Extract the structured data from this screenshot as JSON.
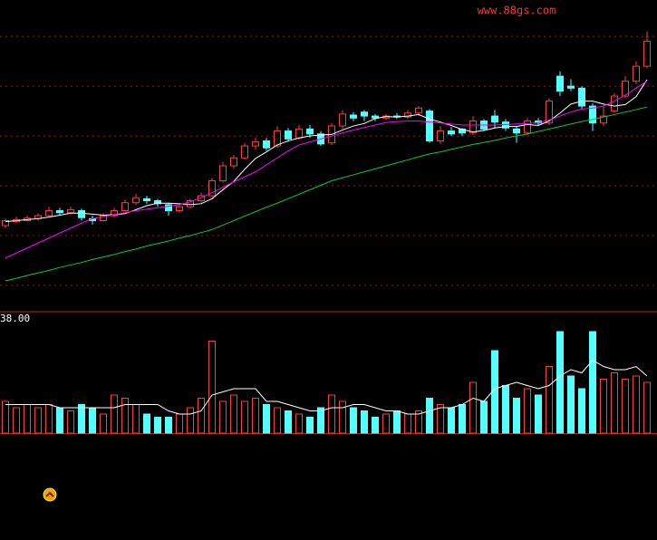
{
  "watermark": "www.88gs.com",
  "chart_data": [
    {
      "type": "candlestick",
      "up_color": "#ff3c3c",
      "down_color": "#54ffff",
      "grid": true,
      "ylim": [
        2.49,
        8.73
      ],
      "yticks": [
        3,
        4,
        5,
        6,
        7,
        8
      ],
      "open": [
        4.2,
        4.28,
        4.3,
        4.34,
        4.4,
        4.5,
        4.46,
        4.5,
        4.34,
        4.3,
        4.4,
        4.5,
        4.66,
        4.74,
        4.7,
        4.62,
        4.5,
        4.58,
        4.7,
        4.8,
        5.1,
        5.4,
        5.56,
        5.8,
        5.9,
        5.8,
        6.1,
        5.96,
        6.14,
        6.04,
        5.86,
        6.2,
        6.42,
        6.48,
        6.4,
        6.36,
        6.4,
        6.38,
        6.46,
        6.5,
        5.9,
        6.1,
        6.14,
        6.06,
        6.3,
        6.4,
        6.28,
        6.14,
        6.06,
        6.3,
        6.26,
        7.2,
        7.0,
        6.96,
        6.6,
        6.26,
        6.5,
        6.8,
        7.1,
        7.4
      ],
      "high": [
        4.34,
        4.38,
        4.4,
        4.45,
        4.58,
        4.56,
        4.58,
        4.54,
        4.4,
        4.45,
        4.56,
        4.72,
        4.84,
        4.8,
        4.74,
        4.66,
        4.62,
        4.74,
        4.86,
        5.16,
        5.48,
        5.62,
        5.86,
        5.96,
        5.96,
        6.2,
        6.16,
        6.22,
        6.22,
        6.1,
        6.26,
        6.52,
        6.48,
        6.52,
        6.44,
        6.44,
        6.46,
        6.52,
        6.6,
        6.54,
        6.2,
        6.18,
        6.16,
        6.4,
        6.34,
        6.52,
        6.34,
        6.2,
        6.36,
        6.36,
        6.76,
        7.3,
        7.14,
        7.0,
        6.66,
        6.6,
        6.86,
        7.2,
        7.5,
        8.1
      ],
      "low": [
        4.15,
        4.25,
        4.28,
        4.3,
        4.38,
        4.4,
        4.42,
        4.3,
        4.22,
        4.28,
        4.36,
        4.48,
        4.62,
        4.64,
        4.58,
        4.4,
        4.46,
        4.54,
        4.66,
        4.78,
        5.06,
        5.34,
        5.52,
        5.72,
        5.7,
        5.76,
        5.88,
        5.92,
        5.96,
        5.8,
        5.82,
        6.14,
        6.3,
        6.3,
        6.3,
        6.32,
        6.34,
        6.34,
        6.4,
        5.86,
        5.84,
        6.0,
        6.0,
        6.02,
        6.1,
        6.16,
        6.1,
        5.86,
        6.02,
        6.2,
        6.22,
        6.8,
        6.9,
        6.54,
        6.1,
        6.2,
        6.46,
        6.76,
        7.04,
        7.36
      ],
      "close": [
        4.3,
        4.32,
        4.35,
        4.4,
        4.5,
        4.46,
        4.52,
        4.36,
        4.3,
        4.4,
        4.5,
        4.66,
        4.76,
        4.7,
        4.64,
        4.5,
        4.58,
        4.7,
        4.8,
        5.1,
        5.4,
        5.56,
        5.8,
        5.88,
        5.76,
        6.1,
        5.94,
        6.14,
        6.04,
        5.84,
        6.2,
        6.44,
        6.36,
        6.4,
        6.36,
        6.4,
        6.38,
        6.46,
        6.56,
        5.9,
        6.1,
        6.04,
        6.06,
        6.3,
        6.14,
        6.28,
        6.16,
        6.06,
        6.3,
        6.26,
        6.7,
        6.9,
        6.96,
        6.6,
        6.26,
        6.4,
        6.8,
        7.1,
        7.4,
        7.9
      ],
      "lines": [
        {
          "color": "#ffffff",
          "values": [
            4.28,
            4.3,
            4.32,
            4.34,
            4.37,
            4.41,
            4.45,
            4.45,
            4.43,
            4.41,
            4.42,
            4.44,
            4.52,
            4.6,
            4.65,
            4.65,
            4.64,
            4.62,
            4.64,
            4.74,
            4.92,
            5.09,
            5.33,
            5.55,
            5.68,
            5.82,
            5.9,
            5.96,
            6.0,
            6.02,
            6.03,
            6.12,
            6.2,
            6.25,
            6.35,
            6.39,
            6.38,
            6.4,
            6.43,
            6.34,
            6.28,
            6.21,
            6.13,
            6.08,
            6.11,
            6.16,
            6.19,
            6.19,
            6.23,
            6.21,
            6.3,
            6.46,
            6.64,
            6.7,
            6.7,
            6.64,
            6.6,
            6.63,
            6.79,
            7.13
          ]
        },
        {
          "color": "#ff00ff",
          "values": [
            3.55,
            3.65,
            3.75,
            3.85,
            3.95,
            4.05,
            4.15,
            4.25,
            4.34,
            4.38,
            4.42,
            4.46,
            4.5,
            4.53,
            4.56,
            4.59,
            4.62,
            4.68,
            4.76,
            4.86,
            4.97,
            5.08,
            5.18,
            5.28,
            5.42,
            5.56,
            5.7,
            5.82,
            5.88,
            5.94,
            6.0,
            6.06,
            6.12,
            6.17,
            6.22,
            6.27,
            6.29,
            6.3,
            6.3,
            6.28,
            6.26,
            6.24,
            6.22,
            6.22,
            6.22,
            6.22,
            6.23,
            6.24,
            6.25,
            6.27,
            6.32,
            6.4,
            6.48,
            6.54,
            6.56,
            6.6,
            6.7,
            6.82,
            6.96,
            7.1
          ]
        },
        {
          "color": "#00cc33",
          "values": [
            3.09,
            3.14,
            3.2,
            3.25,
            3.3,
            3.36,
            3.41,
            3.46,
            3.52,
            3.57,
            3.62,
            3.68,
            3.73,
            3.79,
            3.84,
            3.89,
            3.95,
            4.0,
            4.06,
            4.12,
            4.21,
            4.3,
            4.39,
            4.48,
            4.57,
            4.65,
            4.74,
            4.83,
            4.92,
            5.01,
            5.1,
            5.16,
            5.22,
            5.28,
            5.34,
            5.4,
            5.46,
            5.52,
            5.58,
            5.64,
            5.68,
            5.73,
            5.78,
            5.83,
            5.87,
            5.91,
            5.96,
            6.0,
            6.04,
            6.09,
            6.14,
            6.19,
            6.24,
            6.29,
            6.33,
            6.38,
            6.43,
            6.48,
            6.53,
            6.58
          ]
        }
      ]
    },
    {
      "type": "bar",
      "ylim": [
        0,
        38
      ],
      "yticks": [
        {
          "value": 38,
          "label": "38.00"
        }
      ],
      "values": [
        10,
        8,
        9,
        8,
        9,
        8,
        7,
        9,
        8,
        6,
        12,
        11,
        9,
        6,
        5,
        5,
        6,
        8,
        11,
        29,
        10,
        12,
        10,
        11,
        9,
        8,
        7,
        6,
        5,
        8,
        12,
        10,
        8,
        7,
        5,
        6,
        7,
        6,
        7,
        11,
        9,
        8,
        9,
        16,
        10,
        26,
        15,
        11,
        14,
        12,
        21,
        32,
        18,
        14,
        32,
        17,
        19,
        17,
        18,
        16
      ],
      "lines": [
        {
          "color": "#ffffff",
          "values": [
            9,
            9,
            9,
            9,
            9,
            8,
            8,
            8,
            8,
            8,
            8,
            9,
            9,
            9,
            9,
            7,
            6,
            6,
            7,
            12,
            13,
            14,
            14,
            14,
            10,
            10,
            9,
            8,
            7,
            7,
            8,
            8,
            9,
            9,
            8,
            7,
            7,
            6,
            6,
            7,
            8,
            8,
            9,
            11,
            10,
            14,
            15,
            16,
            15,
            14,
            15,
            18,
            20,
            19,
            23,
            21,
            20,
            20,
            21,
            18
          ]
        }
      ]
    }
  ]
}
